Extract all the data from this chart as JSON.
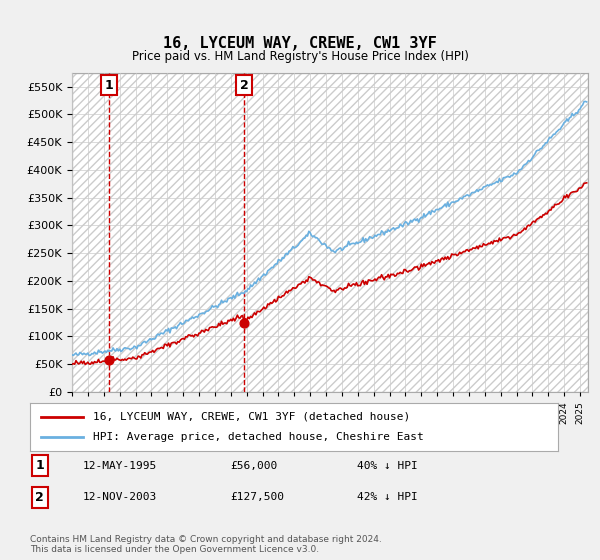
{
  "title": "16, LYCEUM WAY, CREWE, CW1 3YF",
  "subtitle": "Price paid vs. HM Land Registry's House Price Index (HPI)",
  "sale1_price": 56000,
  "sale2_price": 127500,
  "legend1": "16, LYCEUM WAY, CREWE, CW1 3YF (detached house)",
  "legend2": "HPI: Average price, detached house, Cheshire East",
  "note1_date": "12-MAY-1995",
  "note1_price": "£56,000",
  "note1_hpi": "40% ↓ HPI",
  "note2_date": "12-NOV-2003",
  "note2_price": "£127,500",
  "note2_hpi": "42% ↓ HPI",
  "footer": "Contains HM Land Registry data © Crown copyright and database right 2024.\nThis data is licensed under the Open Government Licence v3.0.",
  "hpi_color": "#6ab0e0",
  "price_color": "#cc0000",
  "vline_color": "#cc0000",
  "ylim": [
    0,
    575000
  ],
  "yticks": [
    0,
    50000,
    100000,
    150000,
    200000,
    250000,
    300000,
    350000,
    400000,
    450000,
    500000,
    550000
  ],
  "bg_color": "#f0f0f0",
  "plot_bg": "#ffffff"
}
